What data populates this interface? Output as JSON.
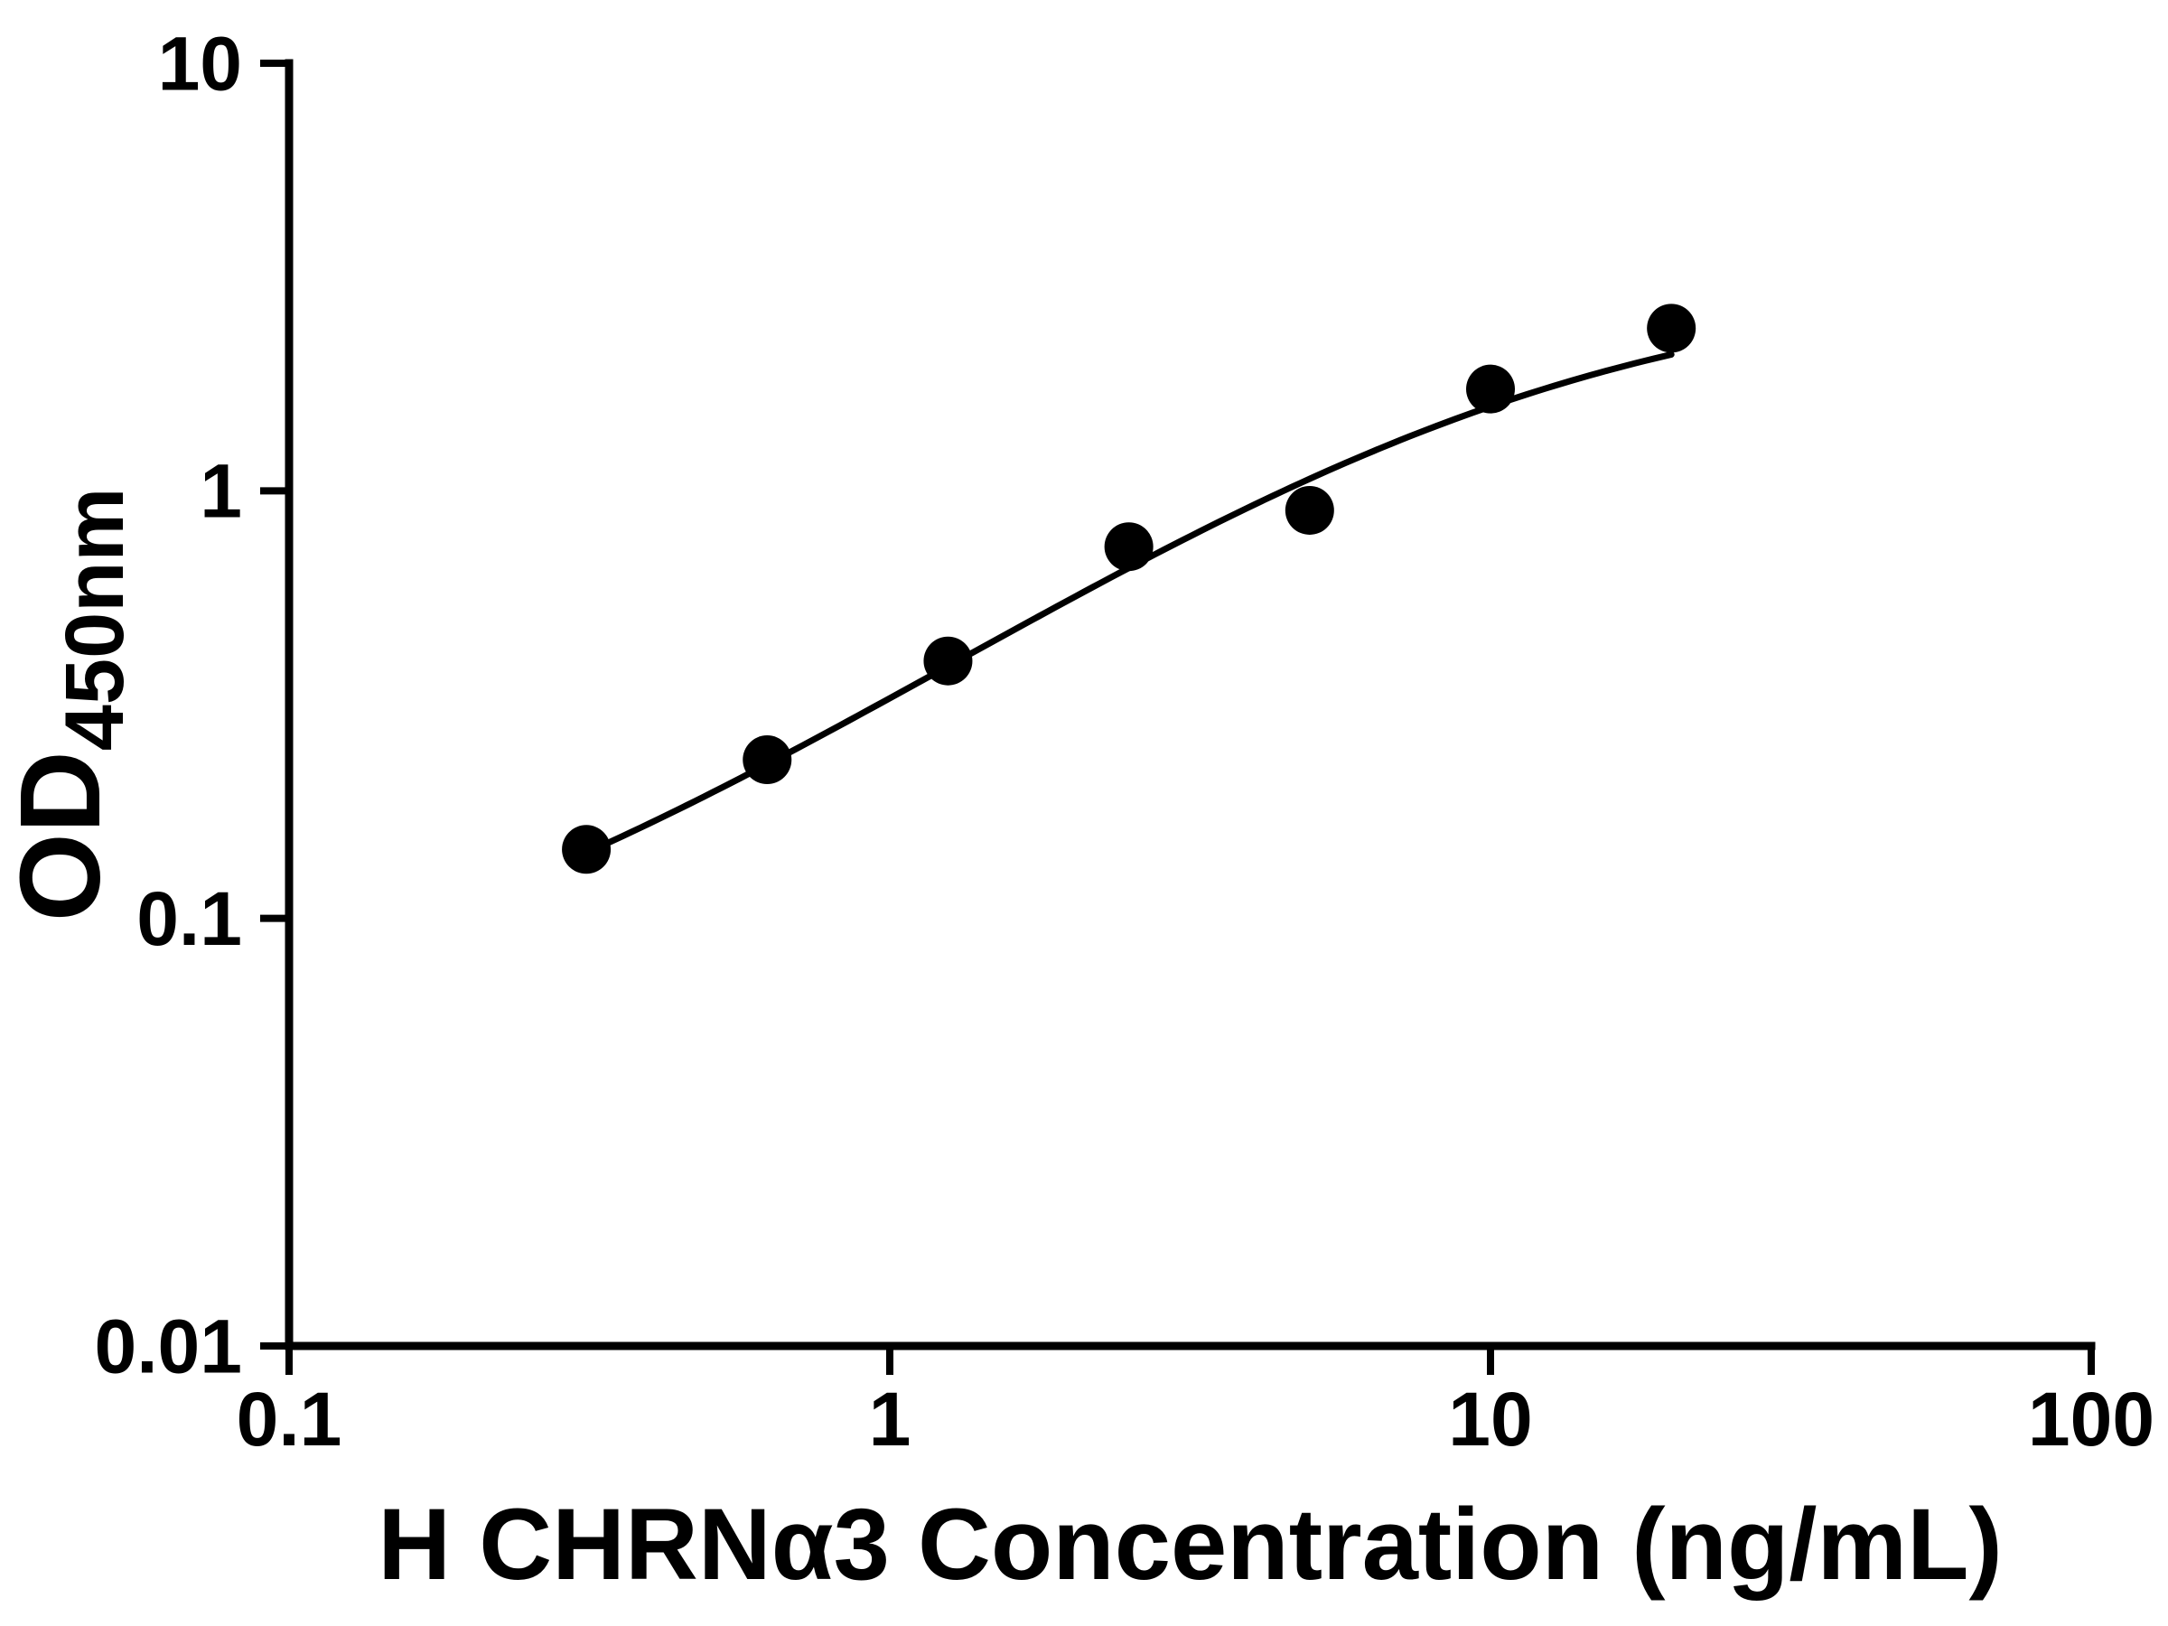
{
  "figure": {
    "background_color": "#ffffff"
  },
  "chart_data": {
    "type": "scatter",
    "title": "",
    "xlabel": "H CHRNα3 Concentration (ng/mL)",
    "ylabel": "OD450nm",
    "ylabel_main": "OD",
    "ylabel_subscript": "450nm",
    "x_scale": "log",
    "y_scale": "log",
    "xlim": [
      0.1,
      100
    ],
    "ylim": [
      0.01,
      10
    ],
    "x_ticks": [
      "0.1",
      "1",
      "10",
      "100"
    ],
    "y_ticks": [
      "0.01",
      "0.1",
      "1",
      "10"
    ],
    "grid": false,
    "legend": false,
    "axis_color": "#000000",
    "series": [
      {
        "name": "standard-points",
        "kind": "scatter",
        "marker": "circle",
        "color": "#000000",
        "x": [
          0.3125,
          0.625,
          1.25,
          2.5,
          5,
          10,
          20
        ],
        "y": [
          0.145,
          0.235,
          0.4,
          0.74,
          0.9,
          1.73,
          2.4
        ]
      },
      {
        "name": "fit-curve",
        "kind": "line",
        "color": "#000000",
        "fit": "4PL",
        "fit_params": {
          "bottom": 0.05,
          "top": 3.1,
          "ec50": 10,
          "hill": 1.0
        },
        "x_range": [
          0.3125,
          20
        ]
      }
    ]
  }
}
